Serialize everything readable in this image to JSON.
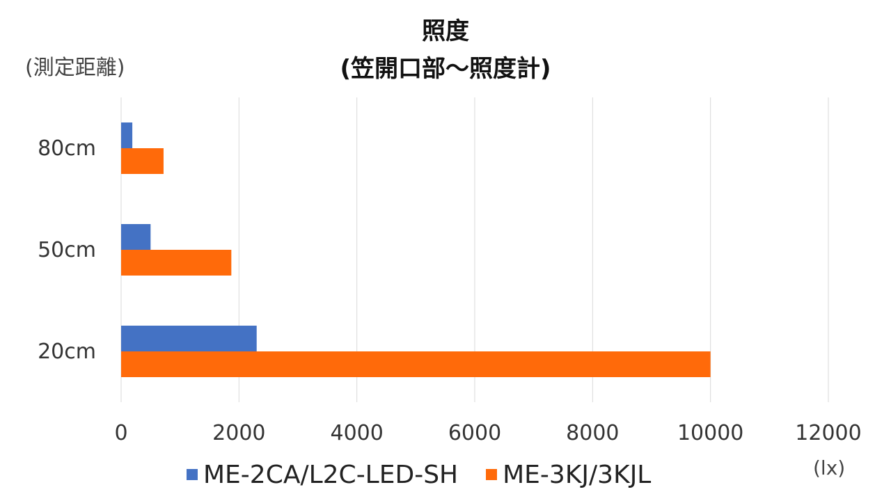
{
  "chart_data": {
    "type": "bar",
    "orientation": "horizontal",
    "title_line1": "照度",
    "title_line2": "(笠開口部〜照度計)",
    "ylabel": "(測定距離)",
    "xlabel": "(lx)",
    "categories": [
      "20cm",
      "50cm",
      "80cm"
    ],
    "series": [
      {
        "name": "ME-2CA/L2C-LED-SH",
        "color": "#4472C4",
        "values": [
          2300,
          500,
          190
        ]
      },
      {
        "name": "ME-3KJ/3KJL",
        "color": "#FF6A0A",
        "values": [
          10000,
          1870,
          720
        ]
      }
    ],
    "xlim": [
      0,
      12000
    ],
    "xticks": [
      "0",
      "2000",
      "4000",
      "6000",
      "8000",
      "10000",
      "12000"
    ],
    "grid": true,
    "legend_position": "bottom"
  }
}
